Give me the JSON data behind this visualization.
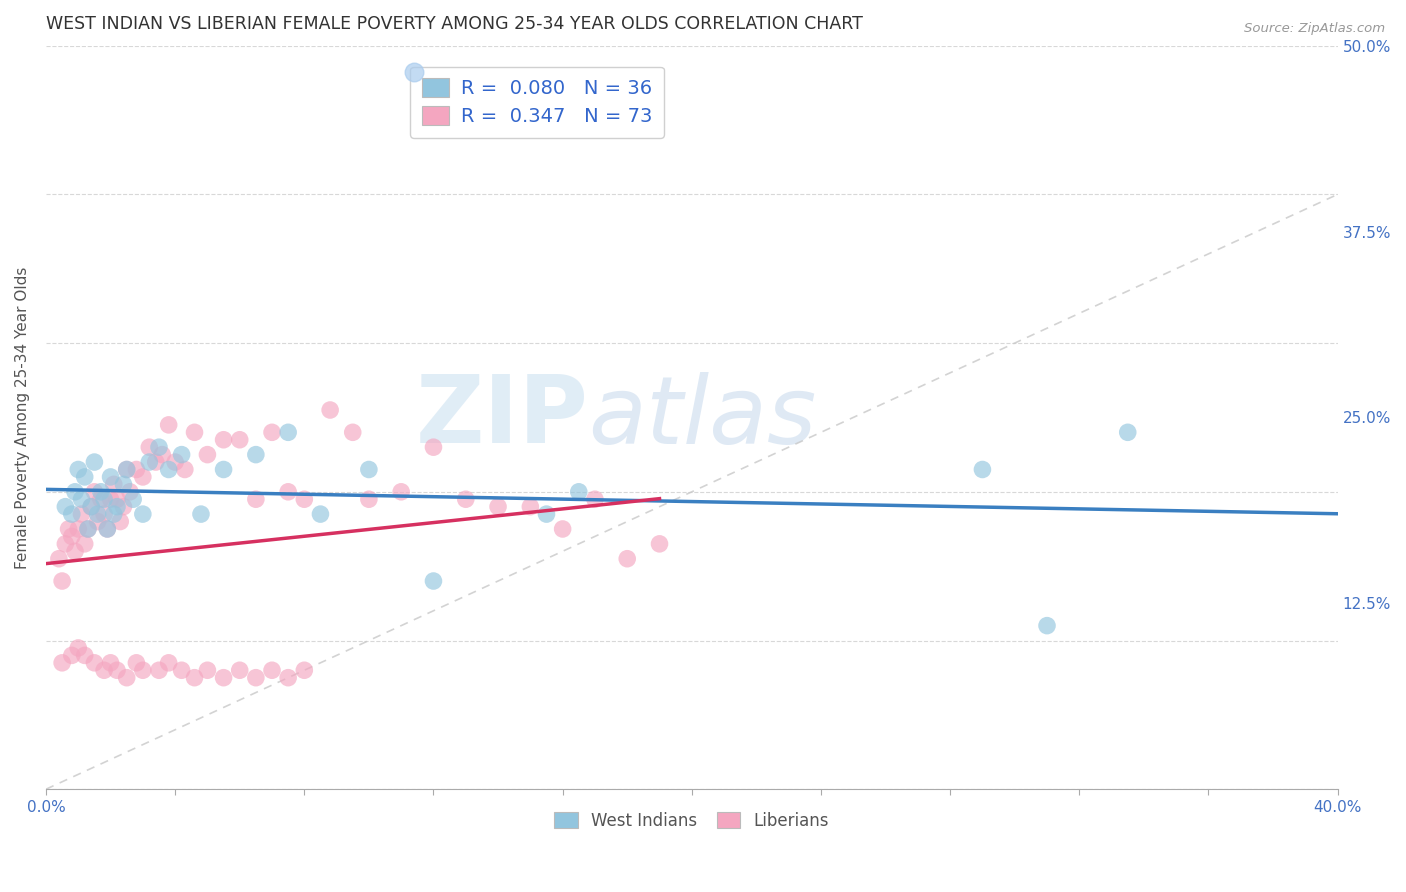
{
  "title": "WEST INDIAN VS LIBERIAN FEMALE POVERTY AMONG 25-34 YEAR OLDS CORRELATION CHART",
  "source": "Source: ZipAtlas.com",
  "ylabel": "Female Poverty Among 25-34 Year Olds",
  "xlim": [
    0.0,
    0.4
  ],
  "ylim": [
    0.0,
    0.5
  ],
  "xticks": [
    0.0,
    0.04,
    0.08,
    0.12,
    0.16,
    0.2,
    0.24,
    0.28,
    0.32,
    0.36,
    0.4
  ],
  "xtick_labels": [
    "0.0%",
    "",
    "",
    "",
    "",
    "",
    "",
    "",
    "",
    "",
    "40.0%"
  ],
  "yticks": [
    0.0,
    0.125,
    0.25,
    0.375,
    0.5
  ],
  "ytick_labels": [
    "",
    "12.5%",
    "25.0%",
    "37.5%",
    "50.0%"
  ],
  "legend_r_blue": "0.080",
  "legend_n_blue": "36",
  "legend_r_pink": "0.347",
  "legend_n_pink": "73",
  "blue_color": "#92c5de",
  "pink_color": "#f4a6c0",
  "blue_line_color": "#3a7fc1",
  "pink_line_color": "#d63060",
  "diag_color": "#c8c8c8",
  "background_color": "#ffffff",
  "watermark_zip": "ZIP",
  "watermark_atlas": "atlas",
  "title_fontsize": 12.5,
  "label_fontsize": 11,
  "tick_fontsize": 11,
  "west_indians_x": [
    0.006,
    0.008,
    0.009,
    0.01,
    0.011,
    0.012,
    0.013,
    0.014,
    0.015,
    0.016,
    0.017,
    0.018,
    0.019,
    0.02,
    0.021,
    0.022,
    0.024,
    0.025,
    0.027,
    0.03,
    0.032,
    0.035,
    0.038,
    0.042,
    0.048,
    0.055,
    0.065,
    0.075,
    0.085,
    0.1,
    0.12,
    0.155,
    0.165,
    0.29,
    0.31,
    0.335
  ],
  "west_indians_y": [
    0.19,
    0.185,
    0.2,
    0.215,
    0.195,
    0.21,
    0.175,
    0.19,
    0.22,
    0.185,
    0.2,
    0.195,
    0.175,
    0.21,
    0.185,
    0.19,
    0.205,
    0.215,
    0.195,
    0.185,
    0.22,
    0.23,
    0.215,
    0.225,
    0.185,
    0.215,
    0.225,
    0.24,
    0.185,
    0.215,
    0.14,
    0.185,
    0.2,
    0.215,
    0.11,
    0.24
  ],
  "liberians_x": [
    0.004,
    0.005,
    0.006,
    0.007,
    0.008,
    0.009,
    0.01,
    0.011,
    0.012,
    0.013,
    0.014,
    0.015,
    0.016,
    0.017,
    0.018,
    0.019,
    0.02,
    0.021,
    0.022,
    0.023,
    0.024,
    0.025,
    0.026,
    0.028,
    0.03,
    0.032,
    0.034,
    0.036,
    0.038,
    0.04,
    0.043,
    0.046,
    0.05,
    0.055,
    0.06,
    0.065,
    0.07,
    0.075,
    0.08,
    0.088,
    0.095,
    0.1,
    0.11,
    0.12,
    0.13,
    0.14,
    0.15,
    0.16,
    0.17,
    0.18,
    0.19,
    0.005,
    0.008,
    0.01,
    0.012,
    0.015,
    0.018,
    0.02,
    0.022,
    0.025,
    0.028,
    0.03,
    0.035,
    0.038,
    0.042,
    0.046,
    0.05,
    0.055,
    0.06,
    0.065,
    0.07,
    0.075,
    0.08
  ],
  "liberians_y": [
    0.155,
    0.14,
    0.165,
    0.175,
    0.17,
    0.16,
    0.175,
    0.185,
    0.165,
    0.175,
    0.19,
    0.2,
    0.18,
    0.195,
    0.185,
    0.175,
    0.195,
    0.205,
    0.195,
    0.18,
    0.19,
    0.215,
    0.2,
    0.215,
    0.21,
    0.23,
    0.22,
    0.225,
    0.245,
    0.22,
    0.215,
    0.24,
    0.225,
    0.235,
    0.235,
    0.195,
    0.24,
    0.2,
    0.195,
    0.255,
    0.24,
    0.195,
    0.2,
    0.23,
    0.195,
    0.19,
    0.19,
    0.175,
    0.195,
    0.155,
    0.165,
    0.085,
    0.09,
    0.095,
    0.09,
    0.085,
    0.08,
    0.085,
    0.08,
    0.075,
    0.085,
    0.08,
    0.08,
    0.085,
    0.08,
    0.075,
    0.08,
    0.075,
    0.08,
    0.075,
    0.08,
    0.075,
    0.08
  ]
}
